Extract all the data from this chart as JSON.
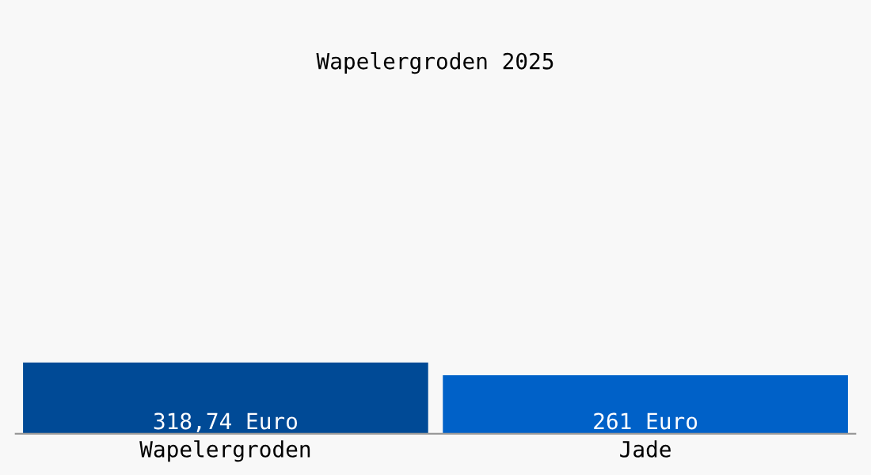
{
  "chart_data": {
    "type": "bar",
    "title": "Wapelergroden 2025",
    "categories": [
      "Wapelergroden",
      "Jade"
    ],
    "values": [
      318.74,
      261
    ],
    "colors": [
      "#004a96",
      "#0061c8"
    ],
    "value_labels": [
      "318,74 Euro",
      "261 Euro"
    ],
    "tick_labels": "x",
    "grid": false,
    "legend": false
  }
}
